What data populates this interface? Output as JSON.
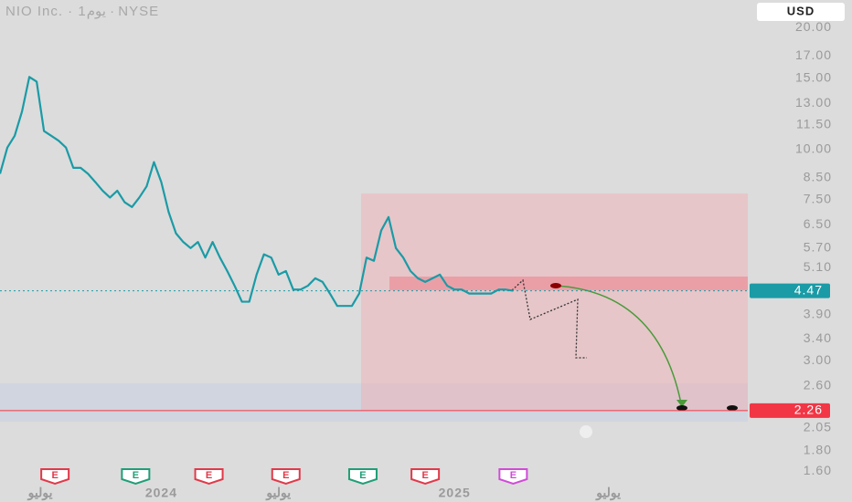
{
  "chart_data": {
    "type": "line",
    "title": "NIO Inc. · 1يوم · NYSE",
    "currency": "USD",
    "log_scale": true,
    "ylim": [
      1.49,
      23.4
    ],
    "yticks": [
      {
        "value": 20,
        "label": "20.00"
      },
      {
        "value": 17,
        "label": "17.00"
      },
      {
        "value": 15,
        "label": "15.00"
      },
      {
        "value": 13,
        "label": "13.00"
      },
      {
        "value": 11.5,
        "label": "11.50"
      },
      {
        "value": 10,
        "label": "10.00"
      },
      {
        "value": 8.5,
        "label": "8.50"
      },
      {
        "value": 7.5,
        "label": "7.50"
      },
      {
        "value": 6.5,
        "label": "6.50"
      },
      {
        "value": 5.7,
        "label": "5.70"
      },
      {
        "value": 5.1,
        "label": "5.10"
      },
      {
        "value": 3.9,
        "label": "3.90"
      },
      {
        "value": 3.4,
        "label": "3.40"
      },
      {
        "value": 3,
        "label": "3.00"
      },
      {
        "value": 2.6,
        "label": "2.60"
      },
      {
        "value": 2.05,
        "label": "2.05"
      },
      {
        "value": 1.8,
        "label": "1.80"
      },
      {
        "value": 1.6,
        "label": "1.60"
      }
    ],
    "xlim": [
      0,
      102
    ],
    "xticks": [
      {
        "value": 5.5,
        "label": "يوليو"
      },
      {
        "value": 22,
        "label": "2024"
      },
      {
        "value": 38,
        "label": "يوليو"
      },
      {
        "value": 62,
        "label": "2025"
      },
      {
        "value": 83,
        "label": "يوليو"
      }
    ],
    "series": [
      {
        "name": "NIO",
        "color": "#1a9ba6",
        "values": [
          8.7,
          10.1,
          10.8,
          12.4,
          15.1,
          14.7,
          11.1,
          10.8,
          10.5,
          10.1,
          9.0,
          9.0,
          8.7,
          8.3,
          7.9,
          7.6,
          7.9,
          7.4,
          7.2,
          7.6,
          8.1,
          9.3,
          8.3,
          7.0,
          6.2,
          5.9,
          5.7,
          5.9,
          5.4,
          5.9,
          5.4,
          5.0,
          4.6,
          4.2,
          4.2,
          4.9,
          5.5,
          5.4,
          4.9,
          5.0,
          4.5,
          4.5,
          4.6,
          4.8,
          4.7,
          4.4,
          4.1,
          4.1,
          4.1,
          4.4,
          5.4,
          5.3,
          6.3,
          6.8,
          5.7,
          5.4,
          5.0,
          4.8,
          4.7,
          4.8,
          4.9,
          4.6,
          4.5,
          4.5,
          4.4,
          4.4,
          4.4,
          4.4,
          4.5,
          4.5,
          4.47
        ]
      }
    ],
    "last_price": 4.47,
    "last_price_color": "#1a9ba6",
    "target_price": 2.26,
    "target_price_color": "#f23645",
    "events": [
      {
        "x": 7.5,
        "label": "E",
        "color": "#e0394a"
      },
      {
        "x": 18.5,
        "label": "E",
        "color": "#1f9e77"
      },
      {
        "x": 28.5,
        "label": "E",
        "color": "#e0394a"
      },
      {
        "x": 39,
        "label": "E",
        "color": "#e0394a"
      },
      {
        "x": 49.5,
        "label": "E",
        "color": "#1f9e77"
      },
      {
        "x": 58,
        "label": "E",
        "color": "#e0394a"
      },
      {
        "x": 70,
        "label": "E",
        "color": "#d14bd8"
      }
    ]
  }
}
